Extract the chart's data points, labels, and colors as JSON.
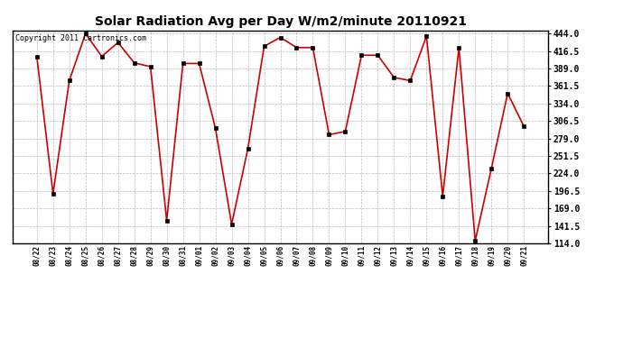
{
  "title": "Solar Radiation Avg per Day W/m2/minute 20110921",
  "copyright": "Copyright 2011 Cartronics.com",
  "dates": [
    "08/22",
    "08/23",
    "08/24",
    "08/25",
    "08/26",
    "08/27",
    "08/28",
    "08/29",
    "08/30",
    "08/31",
    "09/01",
    "09/02",
    "09/03",
    "09/04",
    "09/05",
    "09/06",
    "09/07",
    "09/08",
    "09/09",
    "09/10",
    "09/11",
    "09/12",
    "09/13",
    "09/14",
    "09/15",
    "09/16",
    "09/17",
    "09/18",
    "09/19",
    "09/20",
    "09/21"
  ],
  "values": [
    408,
    192,
    370,
    444,
    408,
    430,
    398,
    392,
    150,
    397,
    397,
    295,
    144,
    263,
    424,
    438,
    422,
    422,
    285,
    290,
    410,
    410,
    375,
    370,
    440,
    188,
    422,
    118,
    232,
    350,
    298
  ],
  "line_color": "#cc0000",
  "marker_color": "#000000",
  "grid_color": "#bbbbbb",
  "bg_color": "#ffffff",
  "ylim_min": 114.0,
  "ylim_max": 449.0,
  "ytick_min": 114.0,
  "ytick_max": 444.0,
  "ytick_step": 27.5,
  "title_fontsize": 10,
  "copyright_fontsize": 6,
  "xtick_fontsize": 5.5,
  "ytick_fontsize": 7
}
